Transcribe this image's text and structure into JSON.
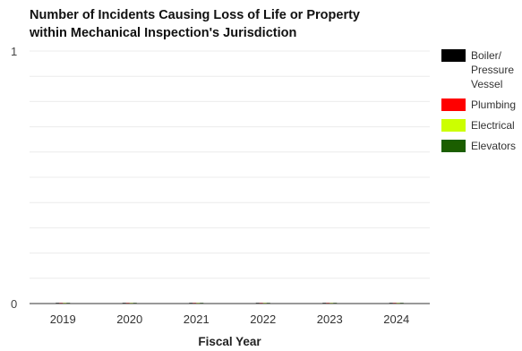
{
  "chart_data": {
    "type": "bar",
    "title": [
      "Number of Incidents Causing Loss of Life or Property",
      "within Mechanical Inspection's Jurisdiction"
    ],
    "xlabel": "Fiscal Year",
    "ylabel": "",
    "categories": [
      "2019",
      "2020",
      "2021",
      "2022",
      "2023",
      "2024"
    ],
    "series": [
      {
        "name": "Boiler/ Pressure Vessel",
        "color": "#000000",
        "values": [
          0,
          0,
          0,
          0,
          0,
          0
        ]
      },
      {
        "name": "Plumbing",
        "color": "#ff0000",
        "values": [
          0,
          0,
          0,
          0,
          0,
          0
        ]
      },
      {
        "name": "Electrical",
        "color": "#ccff00",
        "values": [
          0,
          0,
          0,
          0,
          0,
          0
        ]
      },
      {
        "name": "Elevators",
        "color": "#1b5e00",
        "values": [
          0,
          0,
          0,
          0,
          0,
          0
        ]
      }
    ],
    "ylim": [
      0,
      1
    ],
    "yticks": [
      "0",
      "1"
    ],
    "grid": true,
    "legend": "right"
  }
}
